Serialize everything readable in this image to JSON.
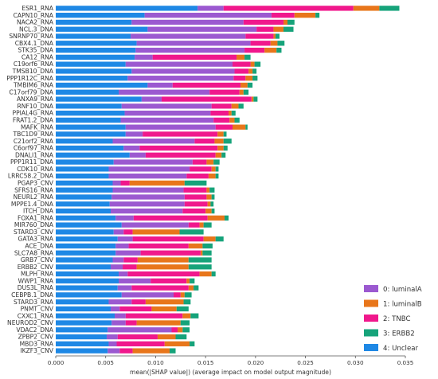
{
  "chart_data": {
    "type": "bar",
    "stacked": true,
    "orientation": "horizontal",
    "xlabel": "mean(|SHAP value|) (average impact on model output magnitude)",
    "xlim": [
      0,
      0.035
    ],
    "xticks": [
      "0.000",
      "0.005",
      "0.010",
      "0.015",
      "0.020",
      "0.025",
      "0.030",
      "0.035"
    ],
    "xtick_values": [
      0,
      0.005,
      0.01,
      0.015,
      0.02,
      0.025,
      0.03,
      0.035
    ],
    "legend_position": "bottom-right",
    "categories": [
      "ESR1_RNA",
      "CAPN10_RNA",
      "NACA2_RNA",
      "NCL.3_DNA",
      "SNRNP70_RNA",
      "CBX4.1_DNA",
      "STK35_DNA",
      "CA12_RNA",
      "C19orf6_RNA",
      "TMSB10_DNA",
      "PPP1R12C_RNA",
      "TMBIM6_RNA",
      "C17orf79_DNA",
      "ANXA9_RNA",
      "RNF10_DNA",
      "PPIAL4G_RNA",
      "FRAT1.2_DNA",
      "MAFK_RNA",
      "TBC1D9_RNA",
      "C21orf2_RNA",
      "C6orf97_RNA",
      "DNALI1_RNA",
      "PPP1R11_DNA",
      "CDK10_RNA",
      "LRRC58.2_DNA",
      "PGAP3_CNV",
      "SFRS16_RNA",
      "NEURL2_RNA",
      "MPPE1.4_DNA",
      "ITCH_DNA",
      "FOXA1_RNA",
      "MIR760_DNA",
      "STARD3_CNV",
      "GATA3_RNA",
      "ACE_DNA",
      "SLC7A8_RNA",
      "GRB7_CNV",
      "ERBB2_CNV",
      "MLPH_RNA",
      "WWP1_RNA",
      "DUS3L_RNA",
      "CEBPB.1_DNA",
      "STARD3_RNA",
      "PNMT_CNV",
      "CXXC1_RNA",
      "NEUROD2_CNV",
      "VDAC2_DNA",
      "ZPBP2_CNV",
      "MBD3_RNA",
      "IKZF3_CNV"
    ],
    "series": [
      {
        "name": "4: Unclear",
        "color": "#1e88e5",
        "values": [
          0.0142,
          0.0089,
          0.0076,
          0.0092,
          0.0075,
          0.0081,
          0.008,
          0.0079,
          0.007,
          0.0076,
          0.0072,
          0.0092,
          0.0063,
          0.0086,
          0.0066,
          0.0069,
          0.0065,
          0.007,
          0.007,
          0.0057,
          0.0068,
          0.0074,
          0.0058,
          0.0053,
          0.0053,
          0.0057,
          0.0057,
          0.0056,
          0.0054,
          0.0055,
          0.006,
          0.0066,
          0.0058,
          0.0062,
          0.006,
          0.006,
          0.0057,
          0.0055,
          0.0063,
          0.0063,
          0.0062,
          0.0066,
          0.0053,
          0.0055,
          0.0059,
          0.0056,
          0.0052,
          0.0051,
          0.0053,
          0.0052
        ]
      },
      {
        "name": "0: luminalA",
        "color": "#9b59d0",
        "values": [
          0.0026,
          0.0127,
          0.0112,
          0.0109,
          0.0115,
          0.0114,
          0.0109,
          0.0018,
          0.0107,
          0.0103,
          0.0106,
          0.0025,
          0.0091,
          0.002,
          0.009,
          0.0086,
          0.0093,
          0.009,
          0.0017,
          0.0082,
          0.0016,
          0.0016,
          0.0079,
          0.0081,
          0.0078,
          0.0008,
          0.0071,
          0.0073,
          0.0075,
          0.0072,
          0.0018,
          0.0067,
          0.001,
          0.0015,
          0.0013,
          0.0025,
          0.0011,
          0.0012,
          0.0009,
          0.0032,
          0.0014,
          0.0052,
          0.0023,
          0.0009,
          0.0011,
          0.0014,
          0.0064,
          0.0011,
          0.0008,
          0.0012
        ]
      },
      {
        "name": "2: TNBC",
        "color": "#f0188c",
        "values": [
          0.013,
          0.0023,
          0.004,
          0.0017,
          0.0028,
          0.002,
          0.002,
          0.0084,
          0.0018,
          0.0014,
          0.0012,
          0.0068,
          0.003,
          0.009,
          0.002,
          0.0018,
          0.0016,
          0.0017,
          0.0075,
          0.002,
          0.0078,
          0.007,
          0.0014,
          0.0022,
          0.0022,
          0.0009,
          0.0023,
          0.0022,
          0.0023,
          0.0023,
          0.0074,
          0.0011,
          0.0009,
          0.0071,
          0.006,
          0.006,
          0.0014,
          0.0014,
          0.0072,
          0.0036,
          0.0057,
          0.0007,
          0.0014,
          0.0032,
          0.0057,
          0.0011,
          0.0006,
          0.004,
          0.0048,
          0.0013
        ]
      },
      {
        "name": "1: luminalB",
        "color": "#e8761b",
        "values": [
          0.0026,
          0.0021,
          0.0004,
          0.001,
          0.0002,
          0.0007,
          0.0012,
          0.0008,
          0.0004,
          0.0004,
          0.0007,
          0.0007,
          0.0004,
          0.0002,
          0.0007,
          0.0003,
          0.0005,
          0.0013,
          0.0006,
          0.0009,
          0.0006,
          0.0006,
          0.0007,
          0.0004,
          0.0007,
          0.0055,
          0.0003,
          0.0005,
          0.0003,
          0.0006,
          0.0017,
          0.0004,
          0.0047,
          0.0012,
          0.0014,
          0.0002,
          0.0051,
          0.0052,
          0.0012,
          0.0003,
          0.0005,
          0.0004,
          0.0038,
          0.0025,
          0.0008,
          0.0044,
          0.0005,
          0.0018,
          0.0025,
          0.0037
        ]
      },
      {
        "name": "3: ERBB2",
        "color": "#16a37a",
        "values": [
          0.002,
          0.0004,
          0.0007,
          0.001,
          0.0004,
          0.0007,
          0.0005,
          0.0006,
          0.0006,
          0.0004,
          0.0005,
          0.0005,
          0.0005,
          0.0004,
          0.0005,
          0.0004,
          0.0005,
          0.0002,
          0.0003,
          0.0008,
          0.0004,
          0.0004,
          0.0006,
          0.0003,
          0.0003,
          0.0022,
          0.0005,
          0.0003,
          0.0003,
          0.0003,
          0.0004,
          0.0008,
          0.0024,
          0.0008,
          0.001,
          0.0009,
          0.0023,
          0.0023,
          0.0004,
          0.0005,
          0.0005,
          0.0007,
          0.0007,
          0.0012,
          0.0008,
          0.0009,
          0.0007,
          0.0011,
          0.0005,
          0.0006
        ]
      }
    ],
    "legend_order": [
      "0: luminalA",
      "1: luminalB",
      "2: TNBC",
      "3: ERBB2",
      "4: Unclear"
    ]
  }
}
